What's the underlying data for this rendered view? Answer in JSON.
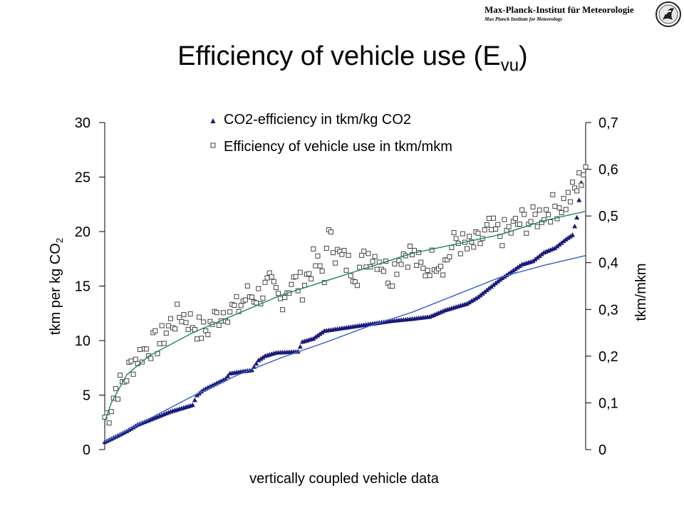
{
  "header": {
    "institute": "Max-Planck-Institut für Meteorologie",
    "institute_en": "Max Planck Institute for Meteorology",
    "title_main": "Efficiency of vehicle use (E",
    "title_sub": "vu",
    "title_end": ")"
  },
  "chart_data": {
    "type": "scatter",
    "xlabel": "vertically coupled vehicle data",
    "ylabel_left": "tkm per kg CO",
    "ylabel_left_sub": "2",
    "ylabel_right": "tkm/mkm",
    "y_left_lim": [
      0,
      30
    ],
    "y_left_ticks": [
      "0",
      "5",
      "10",
      "15",
      "20",
      "25",
      "30"
    ],
    "y_right_lim": [
      0,
      0.7
    ],
    "y_right_ticks": [
      "0",
      "0,1",
      "0,2",
      "0,3",
      "0,4",
      "0,5",
      "0,6",
      "0,7"
    ],
    "x_count": 220,
    "legend": [
      "CO2-efficiency in tkm/kg CO2",
      "Efficiency of vehicle use in tkm/mkm"
    ],
    "series": [
      {
        "name": "CO2-efficiency in tkm/kg CO2",
        "axis": "left",
        "marker": "triangle",
        "color": "#1a1a7a",
        "keypoints": [
          [
            0,
            0.7
          ],
          [
            5,
            1.2
          ],
          [
            10,
            1.7
          ],
          [
            15,
            2.3
          ],
          [
            20,
            2.7
          ],
          [
            25,
            3.1
          ],
          [
            30,
            3.5
          ],
          [
            35,
            3.8
          ],
          [
            40,
            4.1
          ],
          [
            42,
            5.0
          ],
          [
            45,
            5.5
          ],
          [
            50,
            6.0
          ],
          [
            55,
            6.5
          ],
          [
            57,
            7.0
          ],
          [
            60,
            7.1
          ],
          [
            67,
            7.3
          ],
          [
            70,
            8.2
          ],
          [
            73,
            8.6
          ],
          [
            78,
            8.9
          ],
          [
            88,
            9.0
          ],
          [
            90,
            9.9
          ],
          [
            95,
            10.2
          ],
          [
            100,
            10.9
          ],
          [
            110,
            11.2
          ],
          [
            120,
            11.5
          ],
          [
            130,
            11.8
          ],
          [
            140,
            12.0
          ],
          [
            148,
            12.2
          ],
          [
            155,
            12.8
          ],
          [
            165,
            13.4
          ],
          [
            170,
            14.0
          ],
          [
            175,
            14.8
          ],
          [
            180,
            15.6
          ],
          [
            185,
            16.3
          ],
          [
            190,
            17.0
          ],
          [
            195,
            17.3
          ],
          [
            200,
            18.1
          ],
          [
            205,
            18.5
          ],
          [
            210,
            19.3
          ],
          [
            213,
            19.7
          ],
          [
            215,
            21.3
          ],
          [
            217,
            24.5
          ],
          [
            219,
            26.0
          ]
        ]
      },
      {
        "name": "Efficiency of vehicle use in tkm/mkm",
        "axis": "right",
        "marker": "square",
        "color": "#444444",
        "keypoints": [
          [
            0,
            0.07
          ],
          [
            2,
            0.08
          ],
          [
            5,
            0.13
          ],
          [
            8,
            0.14
          ],
          [
            12,
            0.18
          ],
          [
            15,
            0.2
          ],
          [
            20,
            0.22
          ],
          [
            25,
            0.23
          ],
          [
            30,
            0.27
          ],
          [
            35,
            0.29
          ],
          [
            40,
            0.27
          ],
          [
            45,
            0.25
          ],
          [
            50,
            0.28
          ],
          [
            55,
            0.3
          ],
          [
            60,
            0.3
          ],
          [
            65,
            0.33
          ],
          [
            70,
            0.33
          ],
          [
            75,
            0.35
          ],
          [
            80,
            0.32
          ],
          [
            85,
            0.36
          ],
          [
            90,
            0.35
          ],
          [
            95,
            0.4
          ],
          [
            100,
            0.38
          ],
          [
            103,
            0.48
          ],
          [
            105,
            0.42
          ],
          [
            110,
            0.4
          ],
          [
            115,
            0.38
          ],
          [
            120,
            0.42
          ],
          [
            125,
            0.41
          ],
          [
            130,
            0.37
          ],
          [
            135,
            0.42
          ],
          [
            140,
            0.42
          ],
          [
            145,
            0.38
          ],
          [
            150,
            0.41
          ],
          [
            155,
            0.4
          ],
          [
            160,
            0.45
          ],
          [
            165,
            0.43
          ],
          [
            170,
            0.44
          ],
          [
            175,
            0.47
          ],
          [
            180,
            0.46
          ],
          [
            185,
            0.47
          ],
          [
            190,
            0.49
          ],
          [
            195,
            0.49
          ],
          [
            200,
            0.51
          ],
          [
            205,
            0.52
          ],
          [
            210,
            0.53
          ],
          [
            215,
            0.56
          ],
          [
            219,
            0.61
          ]
        ]
      },
      {
        "name": "",
        "axis": "left",
        "marker": "line",
        "color": "#3d66c8",
        "keypoints": [
          [
            0,
            0.7
          ],
          [
            20,
            2.8
          ],
          [
            40,
            4.9
          ],
          [
            60,
            6.8
          ],
          [
            80,
            8.4
          ],
          [
            100,
            9.8
          ],
          [
            120,
            11.3
          ],
          [
            140,
            12.6
          ],
          [
            160,
            14.2
          ],
          [
            180,
            15.8
          ],
          [
            200,
            16.9
          ],
          [
            219,
            17.8
          ]
        ]
      },
      {
        "name": "",
        "axis": "right",
        "marker": "line",
        "color": "#2e8a6b",
        "keypoints": [
          [
            0,
            0.06
          ],
          [
            3,
            0.1
          ],
          [
            10,
            0.16
          ],
          [
            20,
            0.2
          ],
          [
            40,
            0.25
          ],
          [
            60,
            0.29
          ],
          [
            80,
            0.33
          ],
          [
            100,
            0.36
          ],
          [
            120,
            0.39
          ],
          [
            140,
            0.42
          ],
          [
            160,
            0.44
          ],
          [
            180,
            0.46
          ],
          [
            200,
            0.49
          ],
          [
            219,
            0.51
          ]
        ]
      }
    ]
  }
}
